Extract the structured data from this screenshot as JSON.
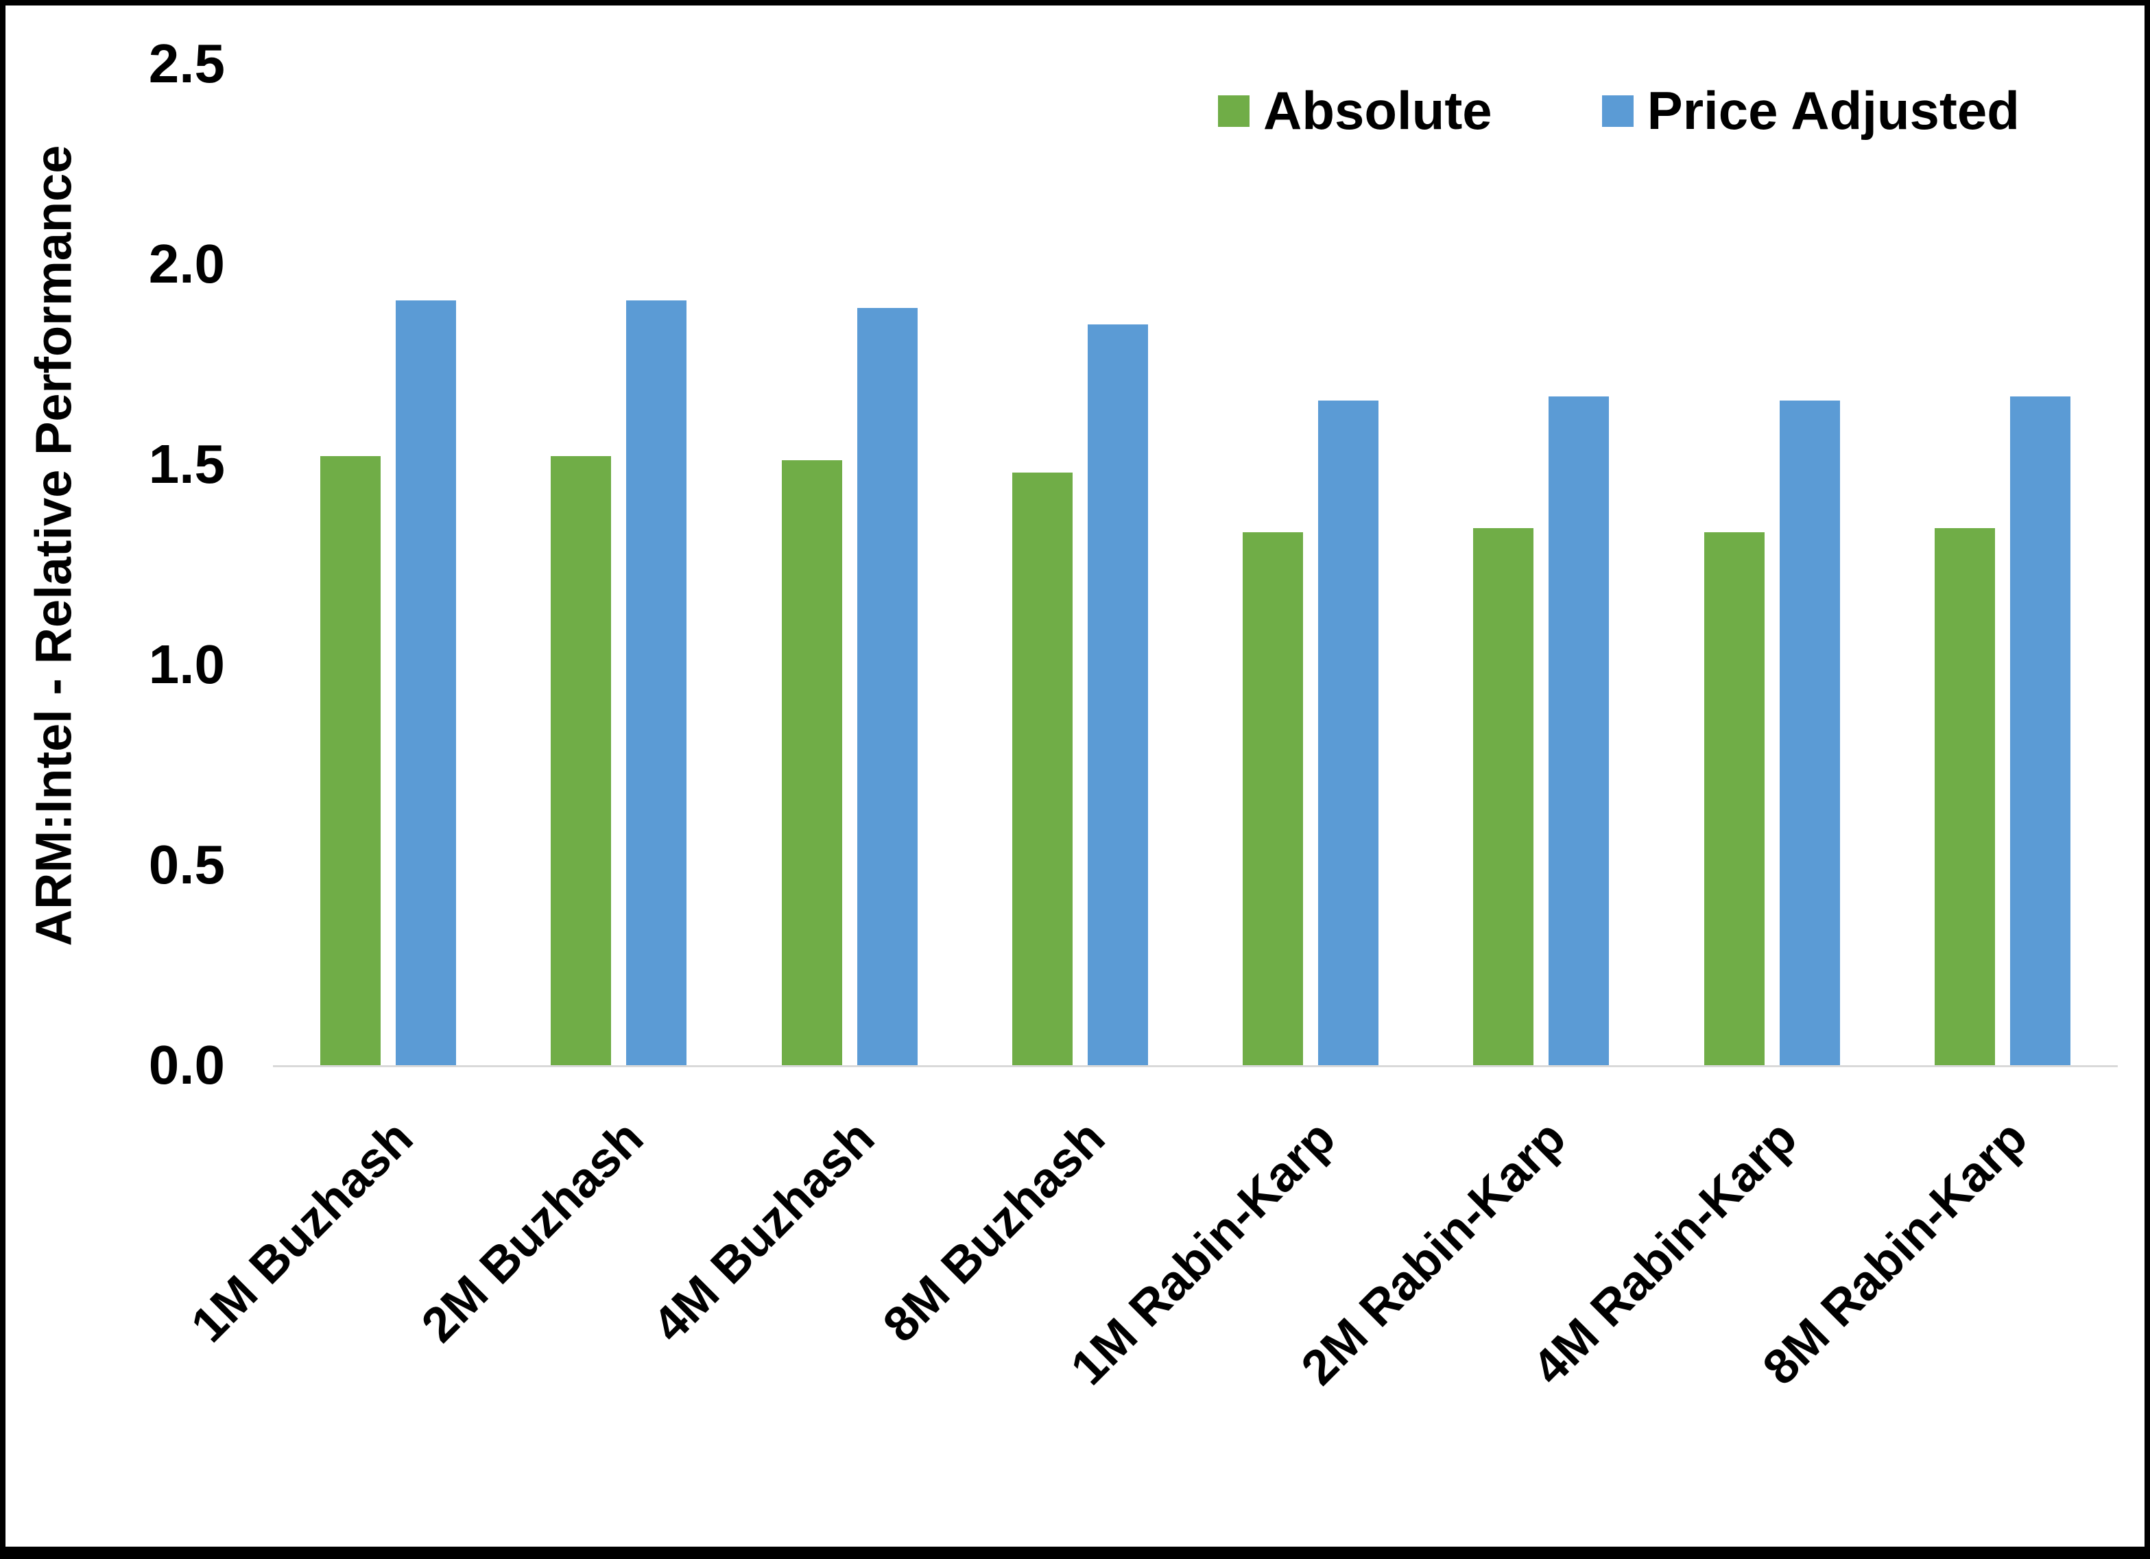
{
  "chart_data": {
    "type": "bar",
    "title": "",
    "xlabel": "",
    "ylabel": "ARM:Intel - Relative Performance",
    "ylim": [
      0,
      2.5
    ],
    "yticks": [
      "0.0",
      "0.5",
      "1.0",
      "1.5",
      "2.0",
      "2.5"
    ],
    "grid": false,
    "legend_position": "top-right",
    "categories": [
      "1M Buzhash",
      "2M Buzhash",
      "4M Buzhash",
      "8M Buzhash",
      "1M Rabin-Karp",
      "2M Rabin-Karp",
      "4M Rabin-Karp",
      "8M Rabin-Karp"
    ],
    "series": [
      {
        "name": "Absolute",
        "color": "#70AD47",
        "values": [
          1.52,
          1.52,
          1.51,
          1.48,
          1.33,
          1.34,
          1.33,
          1.34
        ]
      },
      {
        "name": "Price Adjusted",
        "color": "#5B9BD5",
        "values": [
          1.91,
          1.91,
          1.89,
          1.85,
          1.66,
          1.67,
          1.66,
          1.67
        ]
      }
    ]
  }
}
